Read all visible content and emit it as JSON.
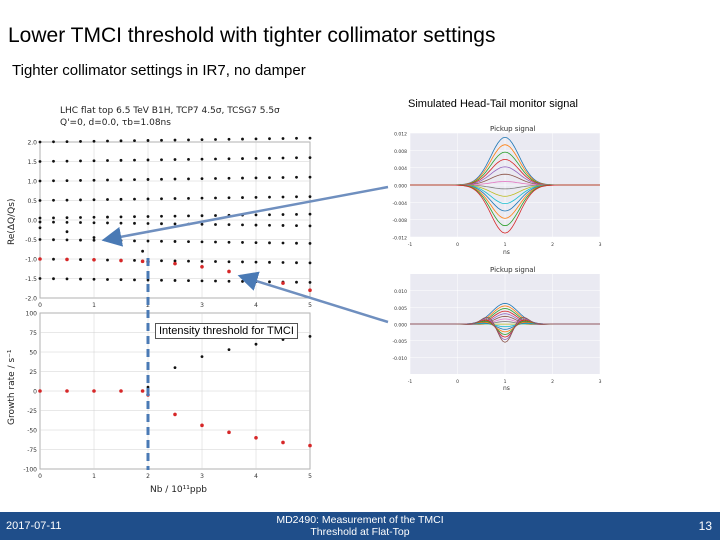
{
  "slide": {
    "title": "Lower TMCI threshold with tighter collimator settings",
    "subtitle": "Tighter collimator settings in IR7, no damper",
    "monitor_caption": "Simulated Head-Tail monitor signal",
    "threshold_label": "Intensity threshold for TMCI",
    "footer_date": "2017-07-11",
    "footer_center_line1": "MD2490: Measurement of the TMCI",
    "footer_center_line2": "Threshold at Flat-Top",
    "page_number": "13"
  },
  "colors": {
    "footer_bg": "#1f4e8a",
    "mode_dots": "#111111",
    "unstable_modes": "#d62728",
    "threshold_line": "#4a7ab5",
    "arrow": "#6f8fbf"
  },
  "chart_data": [
    {
      "type": "scatter",
      "title_line1": "LHC flat top 6.5 TeV B1H, TCP7 4.5σ, TCSG7 5.5σ",
      "title_line2": "Q'=0, d=0.0, τb=1.08ns",
      "ylabel": "Re(ΔQ/Qs)",
      "xlim": [
        0,
        5
      ],
      "ylim": [
        -2.0,
        2.0
      ],
      "x_ticks": [
        "0",
        "1",
        "2",
        "3",
        "4",
        "5"
      ],
      "y_ticks": [
        "2.0",
        "1.5",
        "1.0",
        "0.5",
        "0.0",
        "-0.5",
        "-1.0",
        "-1.5",
        "-2.0"
      ],
      "grid": true,
      "black_mode_levels": [
        2.0,
        1.5,
        1.0,
        0.5,
        0.05,
        -0.05,
        -0.5,
        -1.0,
        -1.5
      ],
      "series": [
        {
          "x": [
            0,
            0.5,
            1.0,
            1.5,
            1.9,
            2.0,
            2.5,
            3.0,
            3.5,
            4.0,
            4.5,
            5.0
          ],
          "y": [
            -1.0,
            -1.01,
            -1.02,
            -1.04,
            -1.06,
            -1.07,
            -1.12,
            -1.2,
            -1.32,
            -1.46,
            -1.62,
            -1.8
          ]
        },
        {
          "x": [
            0,
            0.5,
            1.0,
            1.5,
            1.9
          ],
          "y": [
            -0.2,
            -0.3,
            -0.45,
            -0.62,
            -0.8
          ]
        }
      ]
    },
    {
      "type": "scatter",
      "ylabel": "Growth rate / s⁻¹",
      "xlabel": "Nb / 10¹¹ppb",
      "xlim": [
        0,
        5
      ],
      "ylim": [
        -100,
        100
      ],
      "x_ticks": [
        "0",
        "1",
        "2",
        "3",
        "4",
        "5"
      ],
      "y_ticks": [
        "100",
        "75",
        "50",
        "25",
        "0",
        "-25",
        "-50",
        "-75",
        "-100"
      ],
      "grid": true,
      "series": [
        {
          "x": [
            0,
            0.5,
            1.0,
            1.5,
            1.9
          ],
          "y": [
            0,
            0,
            0,
            0,
            0
          ]
        },
        {
          "x": [
            2.0,
            2.5,
            3.0,
            3.5,
            4.0,
            4.5,
            5.0
          ],
          "y": [
            -5,
            -30,
            -44,
            -53,
            -60,
            -66,
            -70
          ]
        },
        {
          "x": [
            2.0,
            2.5,
            3.0,
            3.5,
            4.0,
            4.5,
            5.0
          ],
          "y": [
            5,
            30,
            44,
            53,
            60,
            66,
            70
          ]
        }
      ],
      "threshold_x": 2.0
    },
    {
      "type": "line",
      "title": "Pickup signal",
      "xlim": [
        -1,
        3
      ],
      "ylim": [
        -0.012,
        0.012
      ],
      "x_ticks": [
        "-1",
        "0",
        "1",
        "2",
        "3"
      ],
      "y_ticks": [
        "0.012",
        "0.008",
        "0.004",
        "0.000",
        "-0.004",
        "-0.008",
        "-0.012"
      ],
      "xlabel": "ns"
    },
    {
      "type": "line",
      "title": "Pickup signal",
      "xlim": [
        -1,
        3
      ],
      "ylim": [
        -0.015,
        0.015
      ],
      "x_ticks": [
        "-1",
        "0",
        "1",
        "2",
        "3"
      ],
      "y_ticks": [
        "0.010",
        "0.005",
        "0.000",
        "-0.005",
        "-0.010"
      ],
      "xlabel": "ns"
    }
  ]
}
